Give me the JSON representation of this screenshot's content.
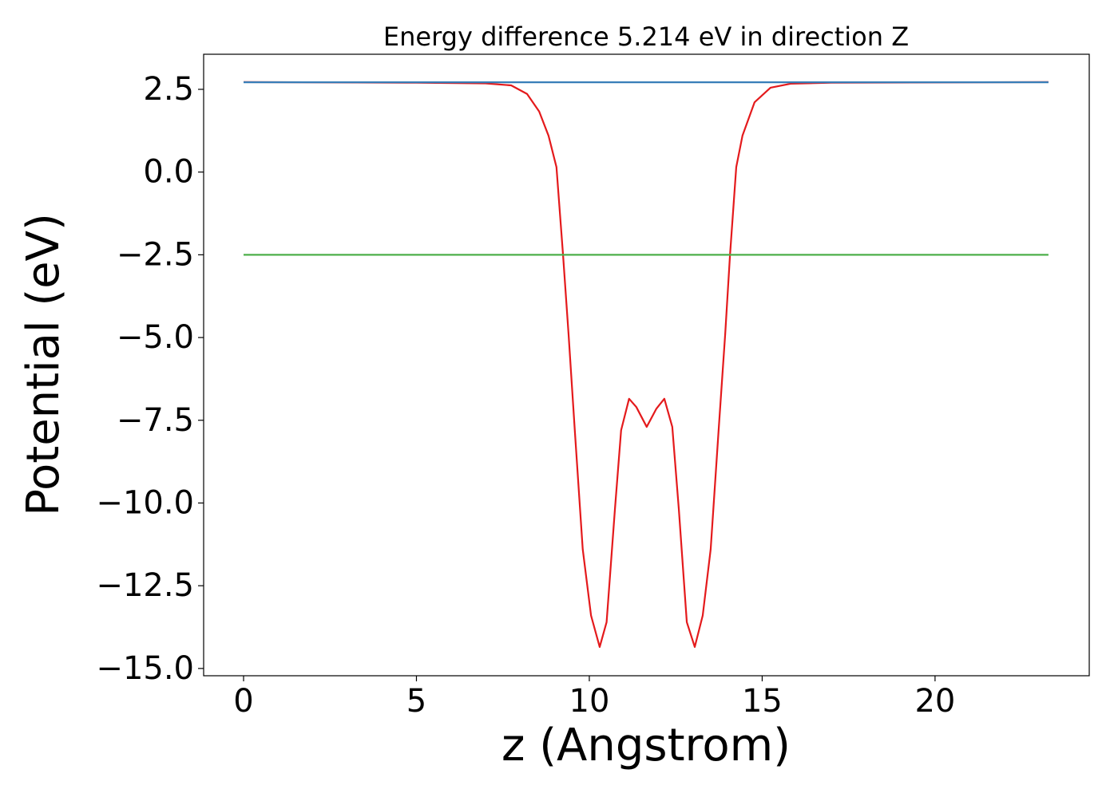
{
  "chart_data": {
    "type": "line",
    "title": "Energy difference 5.214 eV in direction Z",
    "xlabel": "z (Angstrom)",
    "ylabel": "Potential (eV)",
    "xlim": [
      -1.155,
      24.46
    ],
    "ylim": [
      -15.22,
      3.56
    ],
    "xticks": [
      0,
      5,
      10,
      15,
      20
    ],
    "yticks": [
      {
        "value": 2.5,
        "label": "2.5"
      },
      {
        "value": 0,
        "label": "0.0"
      },
      {
        "value": -2.5,
        "label": "−2.5"
      },
      {
        "value": -5,
        "label": "−5.0"
      },
      {
        "value": -7.5,
        "label": "−7.5"
      },
      {
        "value": -10,
        "label": "−10.0"
      },
      {
        "value": -12.5,
        "label": "−12.5"
      },
      {
        "value": -15,
        "label": "−15.0"
      }
    ],
    "series": [
      {
        "color": "#e41a1c",
        "x": [
          0,
          5,
          7,
          7.74,
          8.2,
          8.55,
          8.82,
          9.05,
          9.24,
          9.4,
          9.58,
          9.81,
          10.05,
          10.3,
          10.5,
          10.74,
          10.92,
          11.15,
          11.36,
          11.66,
          11.94,
          12.17,
          12.4,
          12.59,
          12.82,
          13.05,
          13.28,
          13.51,
          13.74,
          13.93,
          14.07,
          14.25,
          14.43,
          14.78,
          15.24,
          15.82,
          17,
          23.28
        ],
        "values": [
          2.72,
          2.7,
          2.68,
          2.62,
          2.36,
          1.83,
          1.1,
          0.15,
          -2.5,
          -4.9,
          -7.8,
          -11.4,
          -13.4,
          -14.35,
          -13.6,
          -10.2,
          -7.8,
          -6.85,
          -7.1,
          -7.7,
          -7.15,
          -6.85,
          -7.7,
          -10.2,
          -13.6,
          -14.35,
          -13.4,
          -11.4,
          -7.8,
          -4.9,
          -2.5,
          0.15,
          1.1,
          2.11,
          2.55,
          2.67,
          2.7,
          2.72
        ]
      },
      {
        "color": "#377eb8",
        "x": [
          0,
          23.28
        ],
        "values": [
          2.714,
          2.714
        ]
      },
      {
        "color": "#4daf4a",
        "x": [
          0,
          23.28
        ],
        "values": [
          -2.5,
          -2.5
        ]
      }
    ]
  }
}
